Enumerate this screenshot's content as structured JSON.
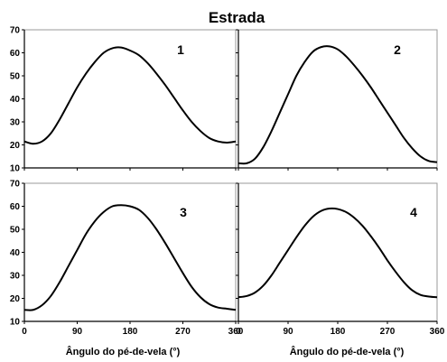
{
  "chart_data": {
    "type": "line",
    "title": "Estrada",
    "xlabel": "Ângulo do pé-de-vela (°)",
    "xlim": [
      0,
      360
    ],
    "ylim": [
      10,
      70
    ],
    "xticks": [
      0,
      90,
      180,
      270,
      360
    ],
    "yticks": [
      10,
      20,
      30,
      40,
      50,
      60,
      70
    ],
    "grid": false,
    "panels": [
      {
        "label": "1",
        "x": [
          0,
          15,
          30,
          45,
          60,
          75,
          90,
          105,
          120,
          135,
          150,
          165,
          180,
          195,
          210,
          225,
          240,
          255,
          270,
          285,
          300,
          315,
          330,
          345,
          360
        ],
        "y": [
          21.5,
          20.5,
          21.5,
          25,
          31,
          38,
          45,
          51,
          56,
          60,
          62,
          62.3,
          61,
          59,
          55.5,
          51,
          46,
          40.5,
          35,
          30,
          26,
          23,
          21.5,
          21,
          21.5
        ]
      },
      {
        "label": "2",
        "x": [
          0,
          15,
          30,
          45,
          60,
          75,
          90,
          105,
          120,
          135,
          150,
          165,
          180,
          195,
          210,
          225,
          240,
          255,
          270,
          285,
          300,
          315,
          330,
          345,
          360
        ],
        "y": [
          12,
          12,
          14,
          19,
          26,
          34,
          42,
          50,
          56,
          60.5,
          62.5,
          62.8,
          61.5,
          58.5,
          54.5,
          50,
          45,
          39.5,
          34,
          28.5,
          23,
          18.5,
          15,
          13,
          12.5
        ]
      },
      {
        "label": "3",
        "x": [
          0,
          15,
          30,
          45,
          60,
          75,
          90,
          105,
          120,
          135,
          150,
          165,
          180,
          195,
          210,
          225,
          240,
          255,
          270,
          285,
          300,
          315,
          330,
          345,
          360
        ],
        "y": [
          15,
          15,
          17,
          21,
          27,
          34,
          41,
          48,
          53.5,
          57.5,
          60,
          60.5,
          60,
          58.5,
          55,
          50,
          44,
          37.5,
          31,
          25,
          20.5,
          17.5,
          16,
          15.5,
          15
        ]
      },
      {
        "label": "4",
        "x": [
          0,
          15,
          30,
          45,
          60,
          75,
          90,
          105,
          120,
          135,
          150,
          165,
          180,
          195,
          210,
          225,
          240,
          255,
          270,
          285,
          300,
          315,
          330,
          345,
          360
        ],
        "y": [
          20.5,
          21,
          22.5,
          25.5,
          30,
          35.5,
          41,
          46.5,
          51.5,
          55.5,
          58,
          59,
          58.8,
          57.5,
          55,
          51.5,
          47,
          42,
          36.5,
          31.5,
          27,
          23.5,
          21.5,
          20.8,
          20.5
        ]
      }
    ]
  }
}
